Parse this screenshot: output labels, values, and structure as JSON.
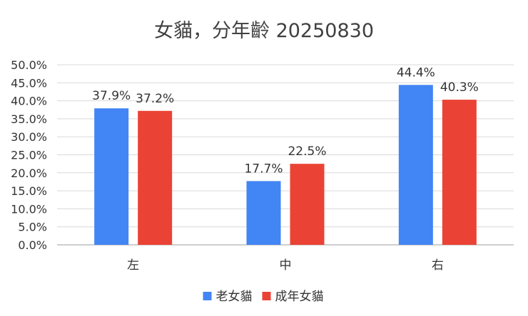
{
  "chart_data": {
    "type": "bar",
    "title": "女貓，分年齡 20250830",
    "categories": [
      "左",
      "中",
      "右"
    ],
    "series": [
      {
        "name": "老女貓",
        "values": [
          37.9,
          17.7,
          44.4
        ],
        "labels": [
          "37.9%",
          "17.7%",
          "44.4%"
        ],
        "color": "#4285F4"
      },
      {
        "name": "成年女貓",
        "values": [
          37.2,
          22.5,
          40.3
        ],
        "labels": [
          "37.2%",
          "22.5%",
          "40.3%"
        ],
        "color": "#EA4335"
      }
    ],
    "ylim": [
      0,
      50
    ],
    "yticks": [
      "0.0%",
      "5.0%",
      "10.0%",
      "15.0%",
      "20.0%",
      "25.0%",
      "30.0%",
      "35.0%",
      "40.0%",
      "45.0%",
      "50.0%"
    ],
    "grid": true,
    "legend_position": "bottom"
  }
}
